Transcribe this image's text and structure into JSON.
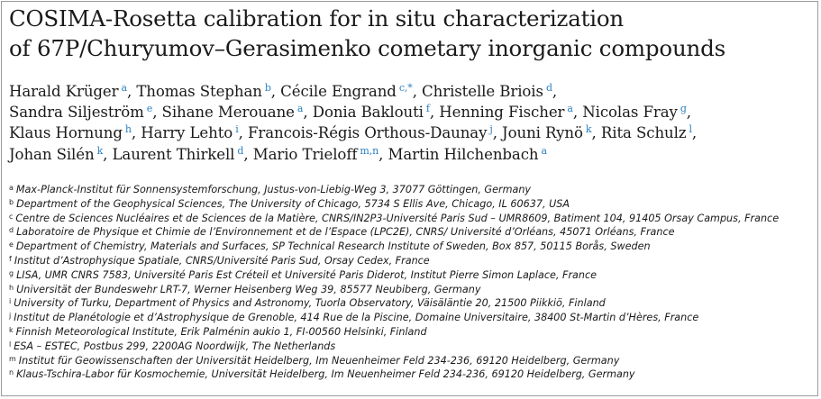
{
  "title_lines": [
    "COSIMA-Rosetta calibration for in situ characterization",
    "of 67P/Churyumov–Gerasimenko cometary inorganic compounds"
  ],
  "authors": [
    {
      "name": "Harald Krüger",
      "marks": "a"
    },
    {
      "name": "Thomas Stephan",
      "marks": "b"
    },
    {
      "name": "Cécile Engrand",
      "marks": "c,*"
    },
    {
      "name": "Christelle Briois",
      "marks": "d"
    },
    {
      "name": "Sandra Siljeström",
      "marks": "e"
    },
    {
      "name": "Sihane Merouane",
      "marks": "a"
    },
    {
      "name": "Donia Baklouti",
      "marks": "f"
    },
    {
      "name": "Henning Fischer",
      "marks": "a"
    },
    {
      "name": "Nicolas Fray",
      "marks": "g"
    },
    {
      "name": "Klaus Hornung",
      "marks": "h"
    },
    {
      "name": "Harry Lehto",
      "marks": "i"
    },
    {
      "name": "Francois-Régis Orthous-Daunay",
      "marks": "j"
    },
    {
      "name": "Jouni Rynö",
      "marks": "k"
    },
    {
      "name": "Rita Schulz",
      "marks": "l"
    },
    {
      "name": "Johan Silén",
      "marks": "k"
    },
    {
      "name": "Laurent Thirkell",
      "marks": "d"
    },
    {
      "name": "Mario Trieloff",
      "marks": "m,n"
    },
    {
      "name": "Martin Hilchenbach",
      "marks": "a"
    }
  ],
  "author_line_breaks_after": [
    3,
    8,
    13
  ],
  "affiliations": [
    {
      "mark": "a",
      "text": "Max-Planck-Institut für Sonnensystemforschung, Justus-von-Liebig-Weg 3, 37077 Göttingen, Germany"
    },
    {
      "mark": "b",
      "text": "Department of the Geophysical Sciences, The University of Chicago, 5734 S Ellis Ave, Chicago, IL 60637, USA"
    },
    {
      "mark": "c",
      "text": "Centre de Sciences Nucléaires et de Sciences de la Matière, CNRS/IN2P3-Université Paris Sud – UMR8609, Batiment 104, 91405 Orsay Campus, France"
    },
    {
      "mark": "d",
      "text": "Laboratoire de Physique et Chimie de l’Environnement et de l’Espace (LPC2E), CNRS/ Université d’Orléans, 45071 Orléans, France"
    },
    {
      "mark": "e",
      "text": "Department of Chemistry, Materials and Surfaces, SP Technical Research Institute of Sweden, Box 857, 50115 Borås, Sweden"
    },
    {
      "mark": "f",
      "text": "Institut d’Astrophysique Spatiale, CNRS/Université Paris Sud, Orsay Cedex, France"
    },
    {
      "mark": "g",
      "text": "LISA, UMR CNRS 7583, Université Paris Est Créteil et Université Paris Diderot, Institut Pierre Simon Laplace, France"
    },
    {
      "mark": "h",
      "text": "Universität der Bundeswehr LRT-7, Werner Heisenberg Weg 39, 85577 Neubiberg, Germany"
    },
    {
      "mark": "i",
      "text": "University of Turku, Department of Physics and Astronomy, Tuorla Observatory, Väisäläntie 20, 21500 Piikkiö, Finland"
    },
    {
      "mark": "j",
      "text": "Institut de Planétologie et d’Astrophysique de Grenoble, 414 Rue de la Piscine, Domaine Universitaire, 38400 St-Martin d’Hères, France"
    },
    {
      "mark": "k",
      "text": "Finnish Meteorological Institute, Erik Palménin aukio 1, FI-00560 Helsinki, Finland"
    },
    {
      "mark": "l",
      "text": "ESA – ESTEC, Postbus 299, 2200AG Noordwijk, The Netherlands"
    },
    {
      "mark": "m",
      "text": "Institut für Geowissenschaften der Universität Heidelberg, Im Neuenheimer Feld 234-236, 69120 Heidelberg, Germany"
    },
    {
      "mark": "n",
      "text": "Klaus-Tschira-Labor für Kosmochemie, Universität Heidelberg, Im Neuenheimer Feld 234-236, 69120 Heidelberg, Germany"
    }
  ],
  "colors": {
    "affiliation_link": "#2a7fc0",
    "text": "#1a1a1a",
    "border": "#9a9a9a"
  }
}
